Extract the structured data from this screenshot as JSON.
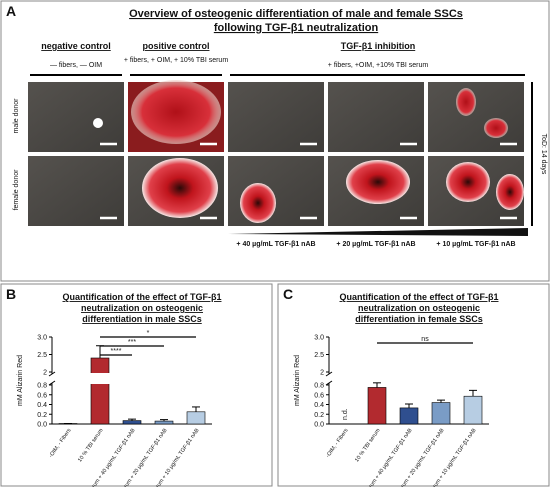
{
  "panel_a": {
    "letter": "A",
    "title": "Overview of osteogenic differentiation of male and female SSCs",
    "title_line2": "following TGF-β1 neutralization",
    "columns": [
      {
        "header": "negative control",
        "condition": "— fibers, — OIM"
      },
      {
        "header": "positive control",
        "condition": "+ fibers, + OIM, + 10% TBI serum"
      },
      {
        "header": "TGF-β1 inhibition",
        "condition": "+ fibers, +OIM, +10% TBI serum"
      }
    ],
    "rows": [
      "male donor",
      "female donor"
    ],
    "time": "ToD: 14 days",
    "doses": [
      "+ 40 µg/mL TGF-β1 nAB",
      "+ 20 µg/mL TGF-β1 nAB",
      "+ 10 µg/mL TGF-β1 nAB"
    ]
  },
  "chart_data": [
    {
      "type": "bar",
      "letter": "B",
      "title": "Quantification of the effect of TGF-β1 neutralization on osteogenic differentiation in male SSCs",
      "ylabel": "mM Alizarin Red",
      "categories": [
        "-OIM, - Fibers",
        "10 % TBI serum",
        "10% serum + 40 µg/mL TGF-β1 nAB",
        "10% serum + 20 µg/mL TGF-β1 nAB",
        "10% serum + 10 µg/mL TGF-β1 nAB"
      ],
      "values": [
        0.01,
        2.4,
        0.07,
        0.06,
        0.25
      ],
      "errors": [
        0,
        0.35,
        0.03,
        0.03,
        0.1
      ],
      "colors": [
        "#b22a2f",
        "#b22a2f",
        "#2f4f8f",
        "#7a9cc6",
        "#b7cde3"
      ],
      "ylim": [
        0,
        3
      ],
      "ybreak": [
        0.8,
        2
      ],
      "yticks": [
        {
          "value": 0,
          "label": "0.0"
        },
        0.2,
        0.4,
        0.6,
        0.8,
        2,
        2.5,
        {
          "value": 3,
          "label": "3.0"
        }
      ],
      "significance": [
        {
          "label": "****",
          "span": [
            1,
            2
          ]
        },
        {
          "label": "***",
          "span": [
            1,
            3
          ]
        },
        {
          "label": "*",
          "span": [
            1,
            4
          ]
        }
      ]
    },
    {
      "type": "bar",
      "letter": "C",
      "title": "Quantification of the effect of TGF-β1 neutralization on osteogenic differentiation in female SSCs",
      "ylabel": "mM Alizarin Red",
      "categories": [
        "-OIM, - Fibers",
        "10 % TBI serum",
        "10% serum + 40 µg/mL TGF-β1 nAB",
        "10% serum + 20 µg/mL TGF-β1 nAB",
        "10% serum + 10 µg/mL TGF-β1 nAB"
      ],
      "values": [
        null,
        0.75,
        0.33,
        0.44,
        0.57
      ],
      "value_labels": [
        "n.d.",
        null,
        null,
        null,
        null
      ],
      "errors": [
        null,
        0.25,
        0.08,
        0.05,
        0.12
      ],
      "colors": [
        "#b22a2f",
        "#b22a2f",
        "#2f4f8f",
        "#7a9cc6",
        "#b7cde3"
      ],
      "ylim": [
        0,
        3
      ],
      "ybreak": [
        0.8,
        2
      ],
      "yticks": [
        {
          "value": 0,
          "label": "0.0"
        },
        0.2,
        0.4,
        0.6,
        0.8,
        2,
        2.5,
        {
          "value": 3,
          "label": "3.0"
        }
      ],
      "significance": [
        {
          "label": "ns",
          "span": [
            1,
            4
          ]
        }
      ]
    }
  ]
}
